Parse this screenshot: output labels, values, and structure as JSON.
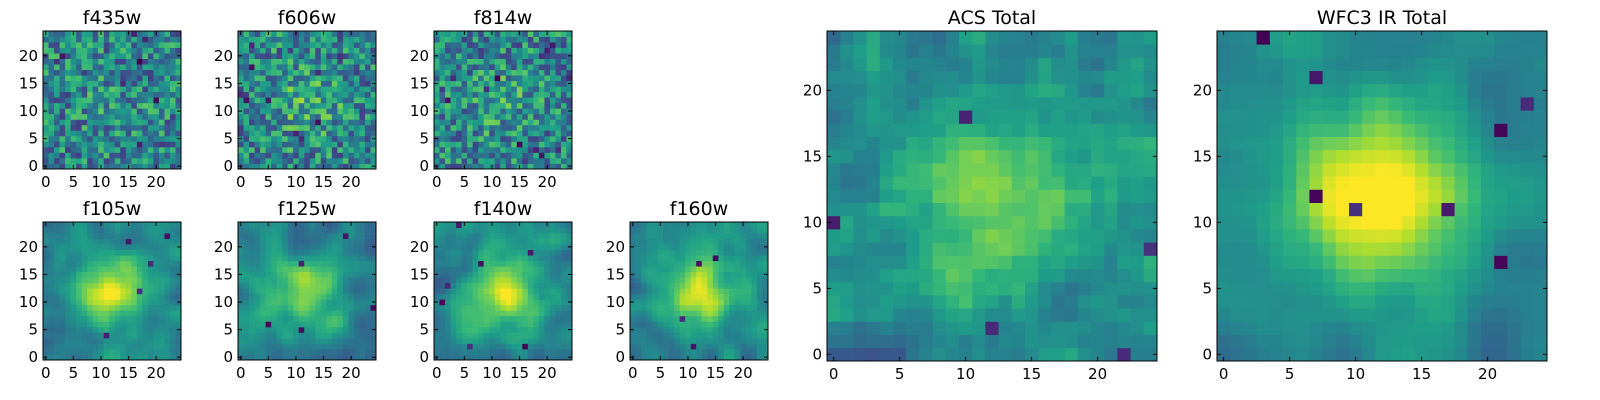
{
  "chart_data": {
    "type": "heatmap",
    "colormap": "viridis",
    "grid": false,
    "panels": [
      {
        "title": "f435w",
        "x_ticks": [
          "0",
          "5",
          "10",
          "15",
          "20"
        ],
        "y_ticks": [
          "0",
          "5",
          "10",
          "15",
          "20"
        ],
        "center_strength": 0.05,
        "smoothness": 0.1,
        "noise": 0.55,
        "dark_count": 8,
        "seed": 11
      },
      {
        "title": "f606w",
        "x_ticks": [
          "0",
          "5",
          "10",
          "15",
          "20"
        ],
        "y_ticks": [
          "0",
          "5",
          "10",
          "15",
          "20"
        ],
        "center_strength": 0.18,
        "smoothness": 0.1,
        "noise": 0.55,
        "dark_count": 10,
        "seed": 23
      },
      {
        "title": "f814w",
        "x_ticks": [
          "0",
          "5",
          "10",
          "15",
          "20"
        ],
        "y_ticks": [
          "0",
          "5",
          "10",
          "15",
          "20"
        ],
        "center_strength": 0.12,
        "smoothness": 0.1,
        "noise": 0.55,
        "dark_count": 12,
        "seed": 37
      },
      {
        "title": "f105w",
        "x_ticks": [
          "0",
          "5",
          "10",
          "15",
          "20"
        ],
        "y_ticks": [
          "0",
          "5",
          "10",
          "15",
          "20"
        ],
        "center_strength": 0.55,
        "smoothness": 0.6,
        "noise": 0.3,
        "dark_count": 5,
        "seed": 41
      },
      {
        "title": "f125w",
        "x_ticks": [
          "0",
          "5",
          "10",
          "15",
          "20"
        ],
        "y_ticks": [
          "0",
          "5",
          "10",
          "15",
          "20"
        ],
        "center_strength": 0.35,
        "smoothness": 0.6,
        "noise": 0.35,
        "dark_count": 5,
        "seed": 53
      },
      {
        "title": "f140w",
        "x_ticks": [
          "0",
          "5",
          "10",
          "15",
          "20"
        ],
        "y_ticks": [
          "0",
          "5",
          "10",
          "15",
          "20"
        ],
        "center_strength": 0.45,
        "smoothness": 0.6,
        "noise": 0.35,
        "dark_count": 7,
        "seed": 67
      },
      {
        "title": "f160w",
        "x_ticks": [
          "0",
          "5",
          "10",
          "15",
          "20"
        ],
        "y_ticks": [
          "0",
          "5",
          "10",
          "15",
          "20"
        ],
        "center_strength": 0.5,
        "smoothness": 0.6,
        "noise": 0.3,
        "dark_count": 4,
        "seed": 79
      },
      {
        "title": "ACS Total",
        "x_ticks": [
          "0",
          "5",
          "10",
          "15",
          "20"
        ],
        "y_ticks": [
          "0",
          "5",
          "10",
          "15",
          "20"
        ],
        "center_strength": 0.3,
        "smoothness": 0.2,
        "noise": 0.4,
        "dark_count": 5,
        "seed": 97
      },
      {
        "title": "WFC3 IR Total",
        "x_ticks": [
          "0",
          "5",
          "10",
          "15",
          "20"
        ],
        "y_ticks": [
          "0",
          "5",
          "10",
          "15",
          "20"
        ],
        "center_strength": 0.65,
        "smoothness": 0.6,
        "noise": 0.25,
        "dark_count": 8,
        "seed": 131
      }
    ],
    "grid_size": 25,
    "x_range": [
      -0.5,
      24.5
    ],
    "y_range": [
      -0.5,
      24.5
    ]
  }
}
